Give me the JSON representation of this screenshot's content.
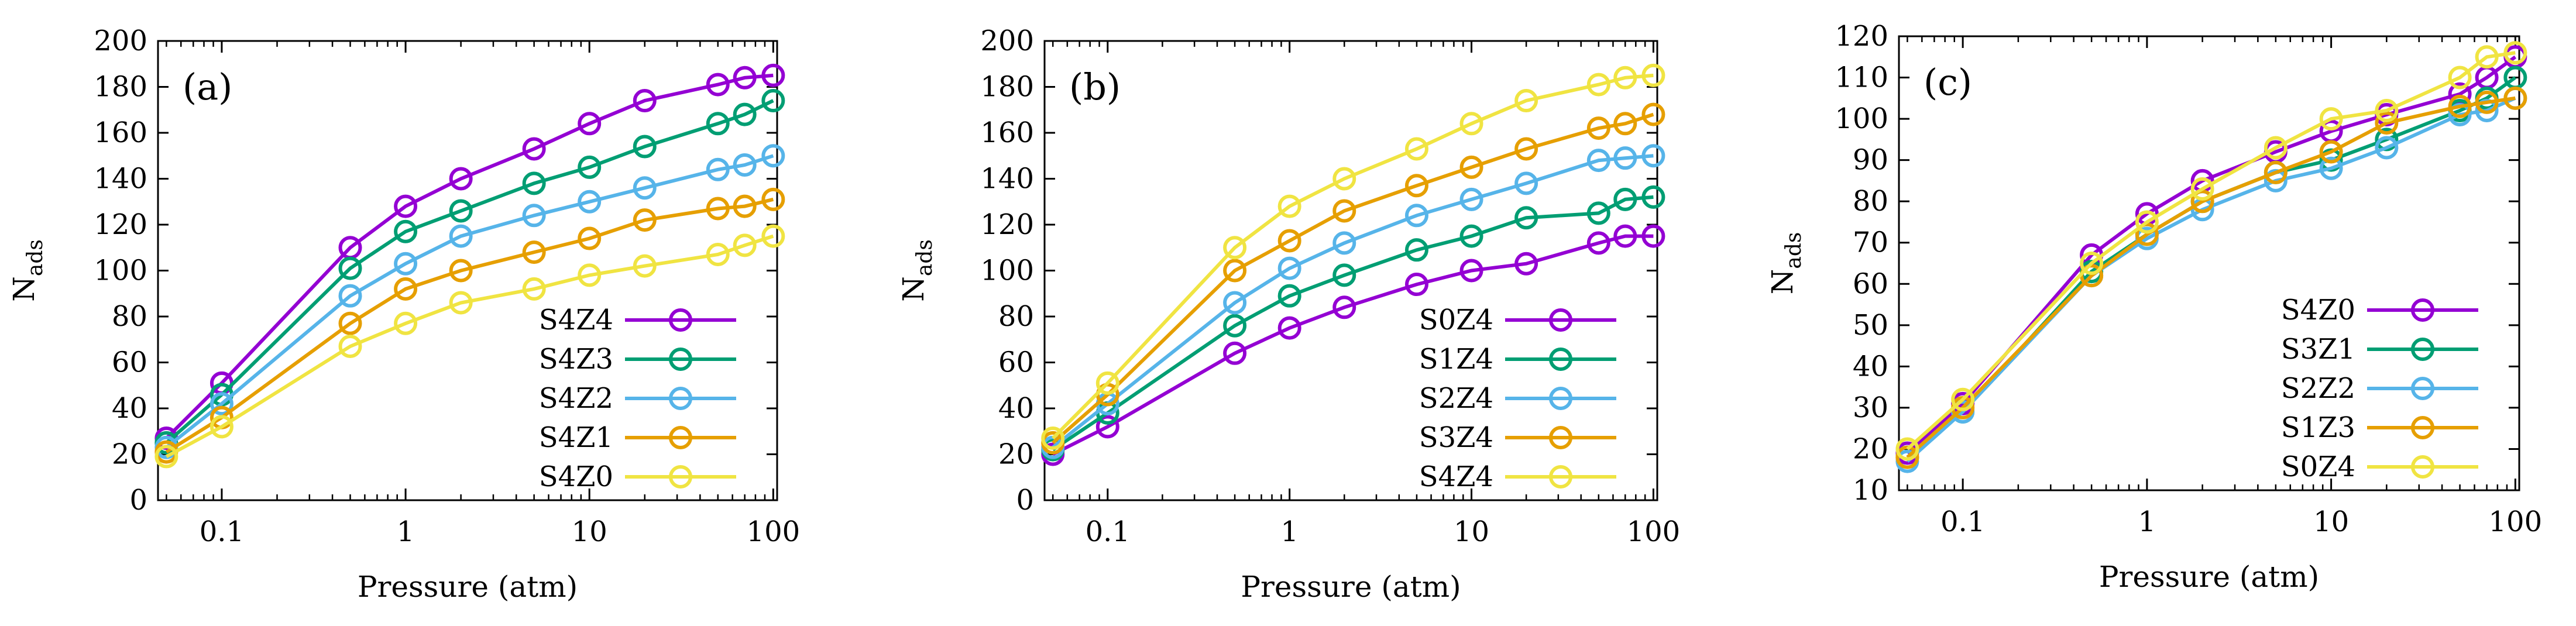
{
  "chart_data": [
    {
      "type": "line",
      "panel_label": "(a)",
      "xlabel": "Pressure (atm)",
      "ylabel": "N",
      "ylabel_sub": "ads",
      "xscale": "log",
      "xlim": [
        0.045,
        105
      ],
      "ylim": [
        0,
        200
      ],
      "yticks": [
        0,
        20,
        40,
        60,
        80,
        100,
        120,
        140,
        160,
        180,
        200
      ],
      "xticks": [
        {
          "value": 0.1,
          "label": "0.1"
        },
        {
          "value": 1,
          "label": "1"
        },
        {
          "value": 10,
          "label": "10"
        },
        {
          "value": 100,
          "label": "100"
        }
      ],
      "legend_position": "bottom-right",
      "x": [
        0.05,
        0.1,
        0.5,
        1,
        2,
        5,
        10,
        20,
        50,
        70,
        100
      ],
      "series": [
        {
          "name": "S4Z4",
          "color": "#9400d3",
          "values": [
            27,
            51,
            110,
            128,
            140,
            153,
            164,
            174,
            181,
            184,
            185
          ]
        },
        {
          "name": "S4Z3",
          "color": "#009e73",
          "values": [
            25,
            46,
            101,
            117,
            126,
            138,
            145,
            154,
            164,
            168,
            174
          ]
        },
        {
          "name": "S4Z2",
          "color": "#56b4e9",
          "values": [
            23,
            42,
            89,
            103,
            115,
            124,
            130,
            136,
            144,
            146,
            150
          ]
        },
        {
          "name": "S4Z1",
          "color": "#e69f00",
          "values": [
            21,
            36,
            77,
            92,
            100,
            108,
            114,
            122,
            127,
            128,
            131
          ]
        },
        {
          "name": "S4Z0",
          "color": "#f0e442",
          "values": [
            19,
            32,
            67,
            77,
            86,
            92,
            98,
            102,
            107,
            111,
            115
          ]
        }
      ]
    },
    {
      "type": "line",
      "panel_label": "(b)",
      "xlabel": "Pressure (atm)",
      "ylabel": "N",
      "ylabel_sub": "ads",
      "xscale": "log",
      "xlim": [
        0.045,
        105
      ],
      "ylim": [
        0,
        200
      ],
      "yticks": [
        0,
        20,
        40,
        60,
        80,
        100,
        120,
        140,
        160,
        180,
        200
      ],
      "xticks": [
        {
          "value": 0.1,
          "label": "0.1"
        },
        {
          "value": 1,
          "label": "1"
        },
        {
          "value": 10,
          "label": "10"
        },
        {
          "value": 100,
          "label": "100"
        }
      ],
      "legend_position": "bottom-right",
      "x": [
        0.05,
        0.1,
        0.5,
        1,
        2,
        5,
        10,
        20,
        50,
        70,
        100
      ],
      "series": [
        {
          "name": "S0Z4",
          "color": "#9400d3",
          "values": [
            20,
            32,
            64,
            75,
            84,
            94,
            100,
            103,
            112,
            115,
            115
          ]
        },
        {
          "name": "S1Z4",
          "color": "#009e73",
          "values": [
            22,
            38,
            76,
            89,
            98,
            109,
            115,
            123,
            125,
            131,
            132
          ]
        },
        {
          "name": "S2Z4",
          "color": "#56b4e9",
          "values": [
            23,
            42,
            86,
            101,
            112,
            124,
            131,
            138,
            148,
            149,
            150
          ]
        },
        {
          "name": "S3Z4",
          "color": "#e69f00",
          "values": [
            25,
            46,
            100,
            113,
            126,
            137,
            145,
            153,
            162,
            164,
            168
          ]
        },
        {
          "name": "S4Z4",
          "color": "#f0e442",
          "values": [
            27,
            51,
            110,
            128,
            140,
            153,
            164,
            174,
            181,
            184,
            185
          ]
        }
      ]
    },
    {
      "type": "line",
      "panel_label": "(c)",
      "xlabel": "Pressure (atm)",
      "ylabel": "N",
      "ylabel_sub": "ads",
      "xscale": "log",
      "xlim": [
        0.045,
        105
      ],
      "ylim": [
        10,
        120
      ],
      "yticks": [
        10,
        20,
        30,
        40,
        50,
        60,
        70,
        80,
        90,
        100,
        110,
        120
      ],
      "xticks": [
        {
          "value": 0.1,
          "label": "0.1"
        },
        {
          "value": 1,
          "label": "1"
        },
        {
          "value": 10,
          "label": "10"
        },
        {
          "value": 100,
          "label": "100"
        }
      ],
      "legend_position": "bottom-right",
      "x": [
        0.05,
        0.1,
        0.5,
        1,
        2,
        5,
        10,
        20,
        50,
        70,
        100
      ],
      "series": [
        {
          "name": "S4Z0",
          "color": "#9400d3",
          "values": [
            19,
            31,
            67,
            77,
            85,
            92,
            97,
            101,
            106,
            110,
            115
          ]
        },
        {
          "name": "S3Z1",
          "color": "#009e73",
          "values": [
            18,
            29,
            63,
            72,
            80,
            87,
            90,
            95,
            102,
            105,
            110
          ]
        },
        {
          "name": "S2Z2",
          "color": "#56b4e9",
          "values": [
            17,
            29,
            62,
            71,
            78,
            85,
            88,
            93,
            101,
            102,
            105
          ]
        },
        {
          "name": "S1Z3",
          "color": "#e69f00",
          "values": [
            18,
            30,
            62,
            72,
            80,
            87,
            92,
            99,
            103,
            104,
            105
          ]
        },
        {
          "name": "S0Z4",
          "color": "#f0e442",
          "values": [
            20,
            32,
            65,
            75,
            83,
            93,
            100,
            102,
            110,
            115,
            116
          ]
        }
      ]
    }
  ]
}
